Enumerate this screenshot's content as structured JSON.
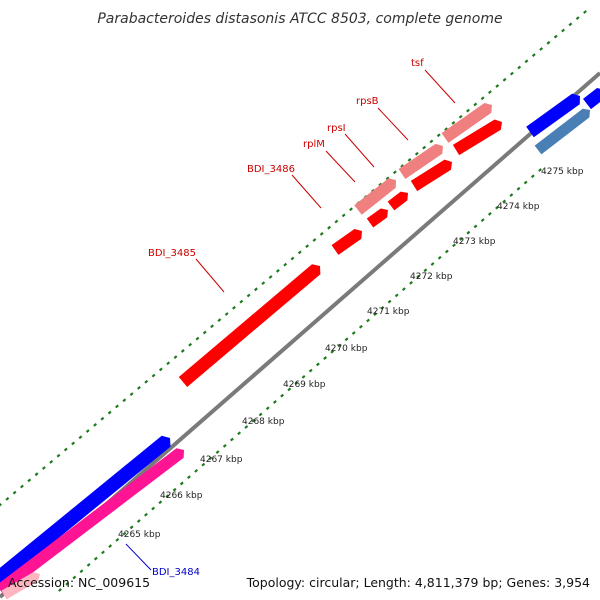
{
  "title": "Parabacteroides distasonis ATCC 8503, complete genome",
  "accession": "Accession: NC_009615",
  "summary": "Topology: circular; Length: 4,811,379 bp; Genes: 3,954",
  "colors": {
    "backbone": "#7a7a7a",
    "tick_dots": "#1f7a1f",
    "gene_red": "#ff0000",
    "gene_pink": "#f08080",
    "gene_blue": "#0000ff",
    "gene_steel": "#4a7fb5",
    "gene_magenta": "#ff1493",
    "gene_lightpink": "#ffb6c1",
    "label_red": "#cc0000",
    "label_blue": "#0000cc"
  },
  "ticks": [
    {
      "label": "4265 kbp",
      "kb": 4265
    },
    {
      "label": "4266 kbp",
      "kb": 4266
    },
    {
      "label": "4267 kbp",
      "kb": 4267
    },
    {
      "label": "4268 kbp",
      "kb": 4268
    },
    {
      "label": "4269 kbp",
      "kb": 4269
    },
    {
      "label": "4270 kbp",
      "kb": 4270
    },
    {
      "label": "4271 kbp",
      "kb": 4271
    },
    {
      "label": "4272 kbp",
      "kb": 4272
    },
    {
      "label": "4273 kbp",
      "kb": 4273
    },
    {
      "label": "4274 kbp",
      "kb": 4274
    },
    {
      "label": "4275 kbp",
      "kb": 4275
    }
  ],
  "genes": [
    {
      "label": "BDI_3485",
      "color": "red"
    },
    {
      "label": "BDI_3486",
      "color": "red"
    },
    {
      "label": "rplM",
      "color": "red"
    },
    {
      "label": "rpsI",
      "color": "red"
    },
    {
      "label": "rpsB",
      "color": "red"
    },
    {
      "label": "tsf",
      "color": "red"
    },
    {
      "label": "BDI_3484",
      "color": "blue"
    }
  ]
}
